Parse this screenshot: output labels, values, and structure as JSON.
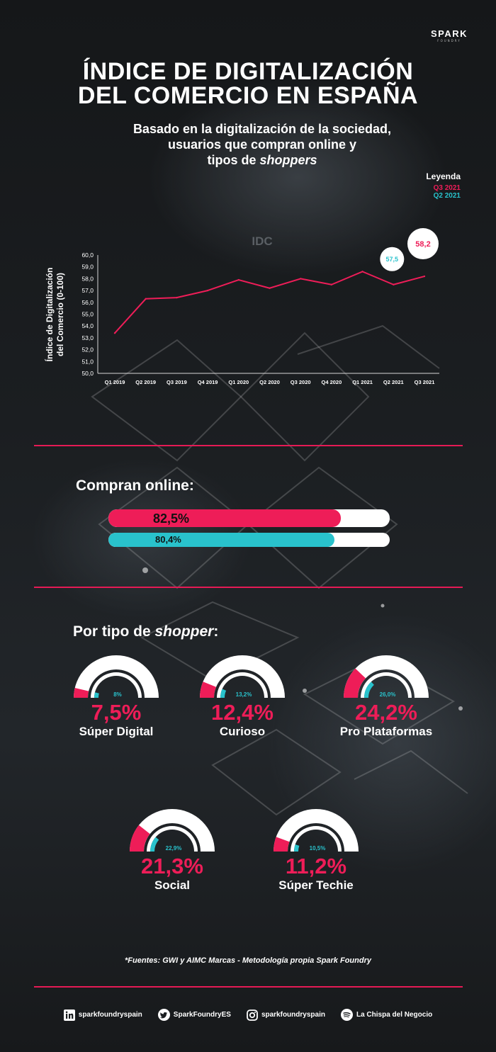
{
  "brand": {
    "name": "SPARK",
    "sub": "FOUNDRY"
  },
  "title": {
    "line1": "ÍNDICE DE DIGITALIZACIÓN",
    "line2": "DEL COMERCIO EN ESPAÑA"
  },
  "subtitle": {
    "line1": "Basado en la digitalización de la sociedad,",
    "line2": "usuarios que compran online y",
    "line3_prefix": "tipos de ",
    "line3_em": "shoppers"
  },
  "legend": {
    "title": "Leyenda",
    "items": [
      {
        "label": "Q3 2021",
        "color": "#ee1d58"
      },
      {
        "label": "Q2 2021",
        "color": "#29c2cc"
      }
    ]
  },
  "chart_data": {
    "type": "line",
    "title": "IDC",
    "ylabel_line1": "Índice de Digitalización",
    "ylabel_line2": "del Comercio (0-100)",
    "xlabel": "",
    "categories": [
      "Q1 2019",
      "Q2 2019",
      "Q3 2019",
      "Q4 2019",
      "Q1 2020",
      "Q2 2020",
      "Q3 2020",
      "Q4 2020",
      "Q1 2021",
      "Q2 2021",
      "Q3 2021"
    ],
    "series": [
      {
        "values": [
          53.4,
          56.3,
          56.4,
          57.0,
          57.9,
          57.2,
          58.0,
          57.5,
          58.6,
          57.5,
          58.2
        ],
        "color": "#ee1d58"
      }
    ],
    "ylim": [
      50,
      60
    ],
    "yticks": [
      "50,0",
      "51,0",
      "52,0",
      "53,0",
      "54,0",
      "55,0",
      "56,0",
      "57,0",
      "58,0",
      "59,0",
      "60,0"
    ],
    "callouts": [
      {
        "category": "Q2 2021",
        "label": "57,5",
        "color": "#29c2cc"
      },
      {
        "category": "Q3 2021",
        "label": "58,2",
        "color": "#ee1d58"
      }
    ]
  },
  "online": {
    "title": "Compran online:",
    "bars": [
      {
        "value": 82.5,
        "label": "82,5%",
        "color": "#ee1d58"
      },
      {
        "value": 80.4,
        "label": "80,4%",
        "color": "#29c2cc"
      }
    ]
  },
  "shopper": {
    "title_prefix": "Por tipo de ",
    "title_em": "shopper",
    "title_suffix": ":",
    "types": [
      {
        "name": "Súper Digital",
        "q3_value": 7.5,
        "q3_label": "7,5%",
        "q2_value": 8,
        "q2_label": "8%"
      },
      {
        "name": "Curioso",
        "q3_value": 12.4,
        "q3_label": "12,4%",
        "q2_value": 13.2,
        "q2_label": "13,2%"
      },
      {
        "name": "Pro Plataformas",
        "q3_value": 24.2,
        "q3_label": "24,2%",
        "q2_value": 26.0,
        "q2_label": "26,0%"
      },
      {
        "name": "Social",
        "q3_value": 21.3,
        "q3_label": "21,3%",
        "q2_value": 22.9,
        "q2_label": "22,9%"
      },
      {
        "name": "Súper Techie",
        "q3_value": 11.2,
        "q3_label": "11,2%",
        "q2_value": 10.5,
        "q2_label": "10,5%"
      }
    ]
  },
  "sources": "*Fuentes: GWI y AIMC Marcas - Metodología propia Spark Foundry",
  "footer": [
    {
      "icon": "linkedin-icon",
      "label": "sparkfoundryspain"
    },
    {
      "icon": "twitter-icon",
      "label": "SparkFoundryES"
    },
    {
      "icon": "instagram-icon",
      "label": "sparkfoundryspain"
    },
    {
      "icon": "spotify-icon",
      "label": "La Chispa del Negocio"
    }
  ]
}
